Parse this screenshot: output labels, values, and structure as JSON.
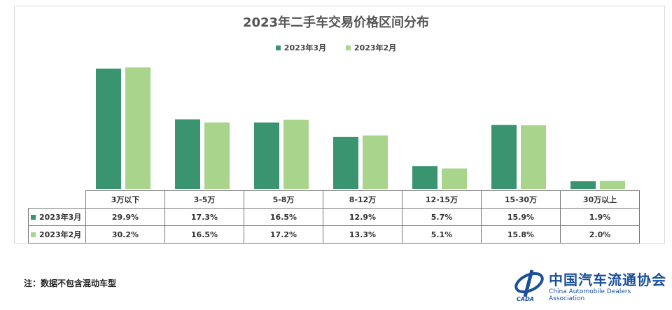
{
  "chart_data": {
    "type": "bar",
    "title": "2023年二手车交易价格区间分布",
    "categories": [
      "3万以下",
      "3-5万",
      "5-8万",
      "8-12万",
      "12-15万",
      "15-30万",
      "30万以上"
    ],
    "series": [
      {
        "name": "2023年3月",
        "values": [
          29.9,
          17.3,
          16.5,
          12.9,
          5.7,
          15.9,
          1.9
        ],
        "labels": [
          "29.9%",
          "17.3%",
          "16.5%",
          "12.9%",
          "5.7%",
          "15.9%",
          "1.9%"
        ],
        "color": "#3a9470"
      },
      {
        "name": "2023年2月",
        "values": [
          30.2,
          16.5,
          17.2,
          13.3,
          5.1,
          15.8,
          2.0
        ],
        "labels": [
          "30.2%",
          "16.5%",
          "17.2%",
          "13.3%",
          "5.1%",
          "15.8%",
          "2.0%"
        ],
        "color": "#a8d48c"
      }
    ],
    "unit": "%",
    "legend": "top",
    "grid": false
  },
  "note": "注：数据不包含混动车型",
  "logo": {
    "cn": "中国汽车流通协会",
    "en": "China Automobile Dealers Association",
    "abbr": "CADA"
  }
}
